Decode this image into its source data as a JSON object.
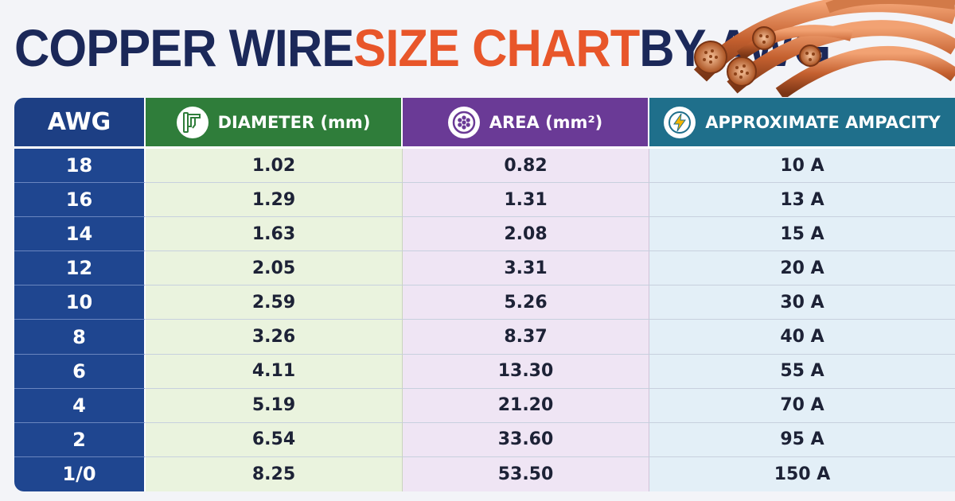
{
  "title": {
    "part1": "COPPER WIRE ",
    "part2": "SIZE CHART",
    "part3": " BY AWG"
  },
  "colors": {
    "title_dark": "#1b2859",
    "title_accent": "#e8562a",
    "awg_header": "#1d3f84",
    "diameter_header": "#2f7d3a",
    "area_header": "#6a3a96",
    "ampacity_header": "#1f6f8b"
  },
  "icons": {
    "diameter": "caliper-icon",
    "area": "wire-cross-section-icon",
    "ampacity": "lightning-bolt-icon",
    "decoration": "copper-wire-coils"
  },
  "chart_data": {
    "type": "table",
    "columns": [
      "AWG",
      "DIAMETER (mm)",
      "AREA (mm²)",
      "APPROXIMATE AMPACITY"
    ],
    "rows": [
      [
        "18",
        "1.02",
        "0.82",
        "10 A"
      ],
      [
        "16",
        "1.29",
        "1.31",
        "13 A"
      ],
      [
        "14",
        "1.63",
        "2.08",
        "15 A"
      ],
      [
        "12",
        "2.05",
        "3.31",
        "20 A"
      ],
      [
        "10",
        "2.59",
        "5.26",
        "30 A"
      ],
      [
        "8",
        "3.26",
        "8.37",
        "40 A"
      ],
      [
        "6",
        "4.11",
        "13.30",
        "55 A"
      ],
      [
        "4",
        "5.19",
        "21.20",
        "70 A"
      ],
      [
        "2",
        "6.54",
        "33.60",
        "95 A"
      ],
      [
        "1/0",
        "8.25",
        "53.50",
        "150 A"
      ]
    ]
  }
}
